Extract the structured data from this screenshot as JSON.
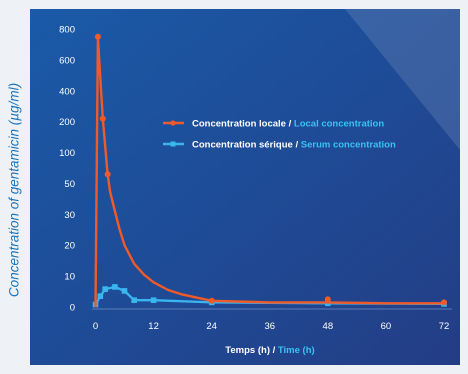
{
  "chart_data": {
    "type": "line",
    "ylabel": "Concentration of gentamicin (µg/ml)",
    "xlabel_fr": "Temps (h)",
    "xlabel_sep": " / ",
    "xlabel_en": "Time (h)",
    "x_ticks": [
      "0",
      "12",
      "24",
      "36",
      "48",
      "60",
      "72"
    ],
    "y_ticks": [
      "0",
      "10",
      "20",
      "30",
      "50",
      "100",
      "200",
      "400",
      "600",
      "800"
    ],
    "xlim": [
      0,
      72
    ],
    "y_scale": "piecewise: segments of equal height 0-10-20-30-50-100-200-400-600-800",
    "grid": false,
    "legend_position": "center-right",
    "colors": {
      "local": "#f05a28",
      "serum": "#39b6f0",
      "accent": "#39c3f2",
      "background": "#1e4c9a"
    },
    "series": [
      {
        "name_fr": "Concentration locale",
        "name_sep": " / ",
        "name_en": "Local concentration",
        "marker_x": [
          0.5,
          1.5,
          2.5,
          24,
          48,
          72
        ],
        "marker_y": [
          750,
          220,
          65,
          2,
          2.5,
          1.5
        ],
        "curve_x": [
          0.5,
          1,
          1.5,
          2,
          2.5,
          3,
          4,
          5,
          6,
          8,
          10,
          12,
          15,
          18,
          24,
          36,
          48,
          60,
          72
        ],
        "curve_y": [
          750,
          480,
          220,
          120,
          65,
          45,
          32,
          25,
          20,
          14,
          10.5,
          8,
          5.5,
          4,
          2,
          1.5,
          1.5,
          1.2,
          1.2
        ]
      },
      {
        "name_fr": "Concentration sérique",
        "name_sep": " / ",
        "name_en": "Serum concentration",
        "x": [
          0,
          1,
          2,
          4,
          6,
          8,
          12,
          24,
          48,
          72
        ],
        "y": [
          0.8,
          3.5,
          5.8,
          6.5,
          5.2,
          2.2,
          2.2,
          1.5,
          1.2,
          1
        ]
      }
    ]
  }
}
